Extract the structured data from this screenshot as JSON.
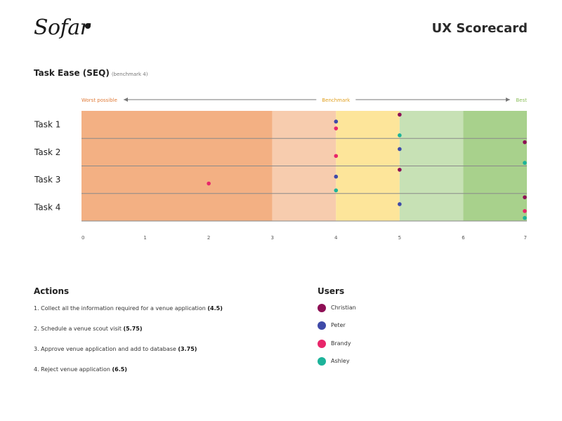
{
  "header": {
    "logo_text": "Sofar",
    "title": "UX Scorecard"
  },
  "chart_data": {
    "type": "scatter",
    "title": "Task Ease (SEQ)",
    "subtitle": "(benchmark 4)",
    "scale_labels": {
      "worst": "Worst possible",
      "benchmark": "Benchmark",
      "best": "Best"
    },
    "xlim": [
      0,
      7
    ],
    "x_ticks": [
      "0",
      "1",
      "2",
      "3",
      "4",
      "5",
      "6",
      "7"
    ],
    "bands": [
      {
        "from": 0,
        "to": 3,
        "color": "#f3b083"
      },
      {
        "from": 3,
        "to": 4,
        "color": "#f7ccae"
      },
      {
        "from": 4,
        "to": 5,
        "color": "#fde59a"
      },
      {
        "from": 5,
        "to": 6,
        "color": "#c7e1b5"
      },
      {
        "from": 6,
        "to": 7,
        "color": "#a8d18c"
      }
    ],
    "tasks": [
      "Task 1",
      "Task 2",
      "Task 3",
      "Task 4"
    ],
    "series": [
      {
        "name": "Christian",
        "color": "#8e0f55",
        "values": [
          5,
          7,
          5,
          7
        ]
      },
      {
        "name": "Peter",
        "color": "#3f4aa8",
        "values": [
          4,
          5,
          4,
          5
        ]
      },
      {
        "name": "Brandy",
        "color": "#e8266a",
        "values": [
          4,
          4,
          2,
          7
        ]
      },
      {
        "name": "Ashley",
        "color": "#1db39a",
        "values": [
          5,
          7,
          4,
          7
        ]
      }
    ]
  },
  "actions": {
    "title": "Actions",
    "items": [
      {
        "text": "1. Collect all the information required for a venue application",
        "score": "(4.5)"
      },
      {
        "text": "2. Schedule a venue scout visit",
        "score": "(5.75)"
      },
      {
        "text": "3. Approve venue application and add to database",
        "score": "(3.75)"
      },
      {
        "text": "4. Reject venue application",
        "score": "(6.5)"
      }
    ]
  },
  "users": {
    "title": "Users",
    "items": [
      {
        "name": "Christian",
        "color": "#8e0f55"
      },
      {
        "name": "Peter",
        "color": "#3f4aa8"
      },
      {
        "name": "Brandy",
        "color": "#e8266a"
      },
      {
        "name": "Ashley",
        "color": "#1db39a"
      }
    ]
  }
}
